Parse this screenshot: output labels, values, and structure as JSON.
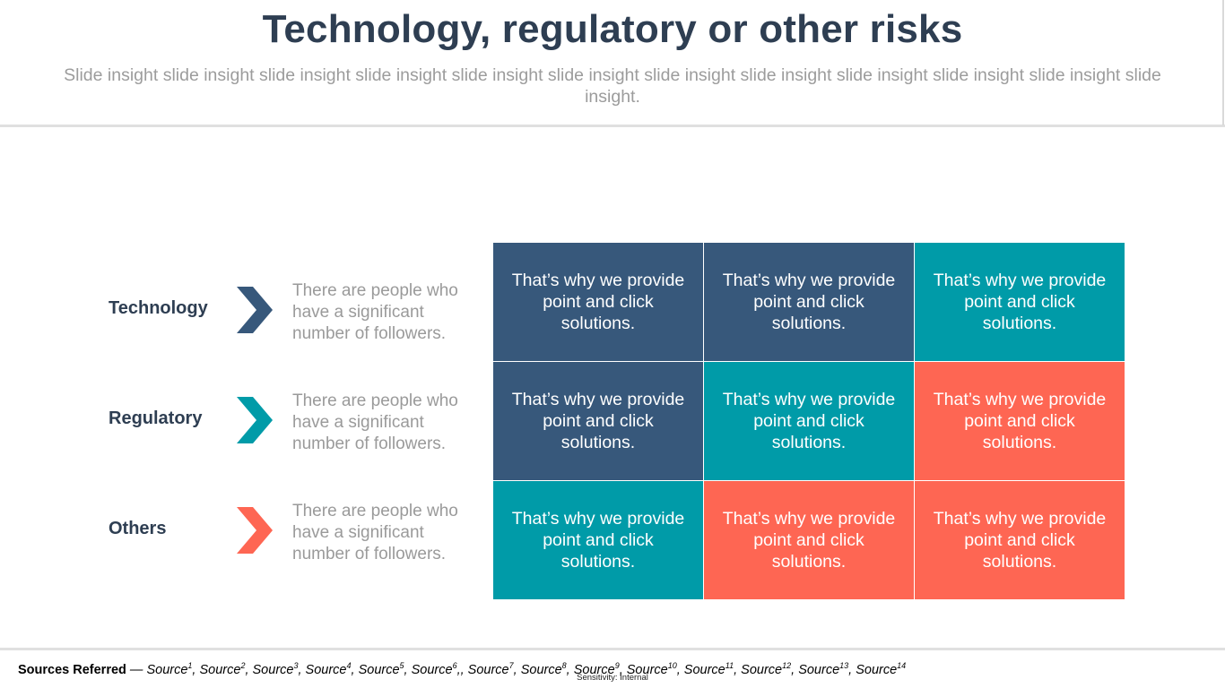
{
  "title": "Technology, regulatory or other risks",
  "subtitle": "Slide insight slide insight slide insight slide insight slide insight slide insight slide insight slide insight slide insight slide insight slide insight slide insight.",
  "rows": [
    {
      "label": "Technology",
      "description": "There are people who have a significant number of followers.",
      "chevron_color": "#37587b"
    },
    {
      "label": "Regulatory",
      "description": "There are people who have a significant number of followers.",
      "chevron_color": "#009ba8"
    },
    {
      "label": "Others",
      "description": "There are people who have a significant number of followers.",
      "chevron_color": "#fe6653"
    }
  ],
  "grid": {
    "cells": [
      [
        "That’s why we provide point and click solutions.",
        "That’s why we provide point and click solutions.",
        "That’s why we provide point and click solutions."
      ],
      [
        "That’s why we provide point and click solutions.",
        "That’s why we provide point and click solutions.",
        "That’s why we provide point and click solutions."
      ],
      [
        "That’s why we provide point and click solutions.",
        "That’s why we provide point and click solutions.",
        "That’s why we provide point and click solutions."
      ]
    ],
    "cell_colors": [
      [
        "navy",
        "navy",
        "teal"
      ],
      [
        "navy",
        "teal",
        "coral"
      ],
      [
        "teal",
        "coral",
        "coral"
      ]
    ]
  },
  "colors": {
    "navy": "#37587b",
    "teal": "#009ba8",
    "coral": "#fe6653",
    "title": "#2e3e52"
  },
  "footer": {
    "label": "Sources Referred",
    "separator": " — ",
    "sources": [
      {
        "text": "Source",
        "sup": "1",
        "sep": ", "
      },
      {
        "text": "Source",
        "sup": "2",
        "sep": ", "
      },
      {
        "text": "Source",
        "sup": "3",
        "sep": ", "
      },
      {
        "text": "Source",
        "sup": "4",
        "sep": ", "
      },
      {
        "text": "Source",
        "sup": "5",
        "sep": ", "
      },
      {
        "text": "Source",
        "sup": "6",
        "sep": ",, "
      },
      {
        "text": "Source",
        "sup": "7",
        "sep": ", "
      },
      {
        "text": "Source",
        "sup": "8",
        "sep": ", "
      },
      {
        "text": "Source",
        "sup": "9",
        "sep": ", "
      },
      {
        "text": "Source",
        "sup": "10",
        "sep": ", "
      },
      {
        "text": "Source",
        "sup": "11",
        "sep": ", "
      },
      {
        "text": "Source",
        "sup": "12",
        "sep": ", "
      },
      {
        "text": "Source",
        "sup": "13",
        "sep": ", "
      },
      {
        "text": "Source",
        "sup": "14",
        "sep": ""
      }
    ]
  },
  "sensitivity": "Sensitivity: Internal"
}
